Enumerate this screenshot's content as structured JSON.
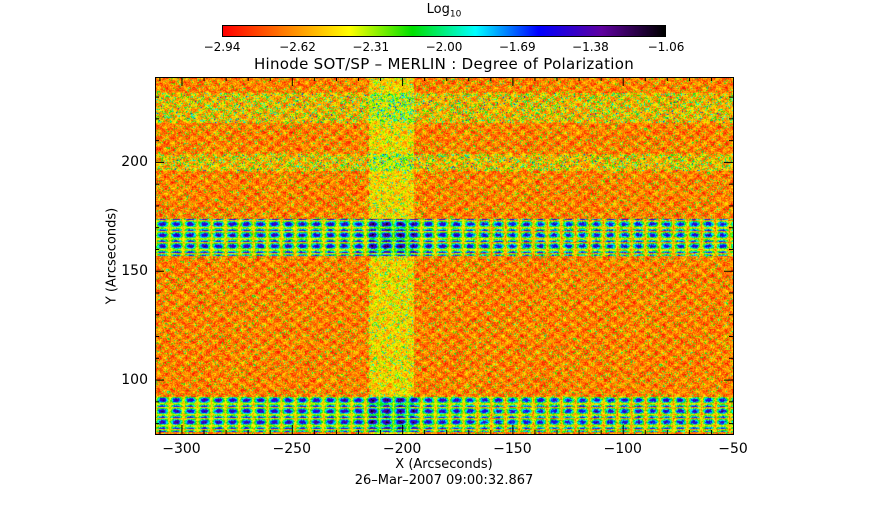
{
  "chart_data": {
    "type": "heatmap",
    "title": "Hinode SOT/SP – MERLIN : Degree of Polarization",
    "xlabel": "X (Arcseconds)",
    "ylabel": "Y (Arcseconds)",
    "footer": "26–Mar–2007 09:00:32.867",
    "xlim": [
      -312,
      -50
    ],
    "ylim": [
      75,
      239
    ],
    "xticks": [
      -300,
      -250,
      -200,
      -150,
      -100,
      -50
    ],
    "xtick_labels": [
      "−300",
      "−250",
      "−200",
      "−150",
      "−100",
      "−50"
    ],
    "yticks": [
      100,
      150,
      200
    ],
    "ytick_labels": [
      "100",
      "150",
      "200"
    ],
    "colorbar": {
      "title_base": "Log",
      "title_sub": "10",
      "range": [
        -2.94,
        -1.06
      ],
      "ticks": [
        -2.94,
        -2.62,
        -2.31,
        -2.0,
        -1.69,
        -1.38,
        -1.06
      ],
      "tick_labels": [
        "−2.94",
        "−2.62",
        "−2.31",
        "−2.00",
        "−1.69",
        "−1.38",
        "−1.06"
      ],
      "colormap": [
        "#ff0000",
        "#ff8000",
        "#ffff00",
        "#00e000",
        "#00ffff",
        "#0000ff",
        "#6000a0",
        "#000000"
      ],
      "position": "top"
    },
    "features": {
      "background_level": -2.85,
      "high_polarization_bands_y": [
        [
          157,
          174
        ],
        [
          76,
          92
        ]
      ],
      "moderate_band_y": [
        [
          196,
          204
        ],
        [
          218,
          232
        ]
      ],
      "vertical_enhanced_strip_x": [
        -215,
        -195
      ]
    }
  }
}
